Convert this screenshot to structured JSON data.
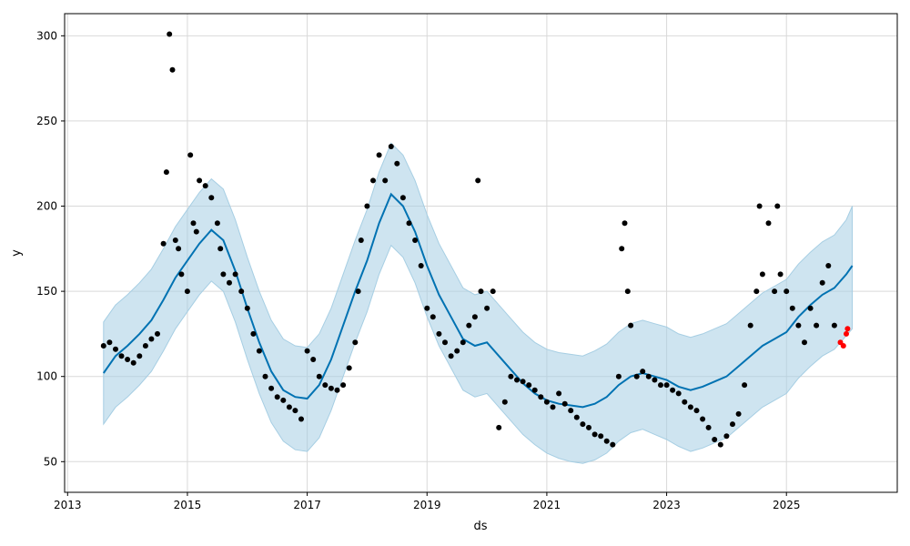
{
  "chart_data": {
    "type": "scatter",
    "xlabel": "ds",
    "ylabel": "y",
    "x_ticks": [
      "2013",
      "2015",
      "2017",
      "2019",
      "2021",
      "2023",
      "2025"
    ],
    "y_ticks": [
      50,
      100,
      150,
      200,
      250,
      300
    ],
    "xlim": [
      2012.95,
      2026.85
    ],
    "ylim": [
      32,
      313
    ],
    "grid": true,
    "colors": {
      "points": "#000000",
      "recent_points": "#ff0000",
      "forecast_line": "#0072b2",
      "interval_fill": "#a6cee3"
    },
    "series": [
      {
        "role": "forecast",
        "x": [
          2013.6,
          2013.8,
          2014.0,
          2014.2,
          2014.4,
          2014.6,
          2014.8,
          2015.0,
          2015.2,
          2015.4,
          2015.6,
          2015.8,
          2016.0,
          2016.2,
          2016.4,
          2016.6,
          2016.8,
          2017.0,
          2017.2,
          2017.4,
          2017.6,
          2017.8,
          2018.0,
          2018.2,
          2018.4,
          2018.6,
          2018.8,
          2019.0,
          2019.2,
          2019.4,
          2019.6,
          2019.8,
          2020.0,
          2020.2,
          2020.4,
          2020.6,
          2020.8,
          2021.0,
          2021.2,
          2021.4,
          2021.6,
          2021.8,
          2022.0,
          2022.2,
          2022.4,
          2022.6,
          2022.8,
          2023.0,
          2023.2,
          2023.4,
          2023.6,
          2023.8,
          2024.0,
          2024.2,
          2024.4,
          2024.6,
          2024.8,
          2025.0,
          2025.2,
          2025.4,
          2025.6,
          2025.8,
          2026.0,
          2026.1
        ],
        "y": [
          102,
          112,
          118,
          125,
          133,
          145,
          158,
          168,
          178,
          186,
          180,
          162,
          140,
          120,
          103,
          92,
          88,
          87,
          95,
          110,
          130,
          150,
          168,
          190,
          207,
          200,
          185,
          165,
          148,
          135,
          122,
          118,
          120,
          112,
          104,
          96,
          90,
          86,
          84,
          83,
          82,
          84,
          88,
          95,
          100,
          102,
          100,
          98,
          94,
          92,
          94,
          97,
          100,
          106,
          112,
          118,
          122,
          126,
          135,
          142,
          148,
          152,
          160,
          165
        ],
        "lower": [
          72,
          82,
          88,
          95,
          103,
          115,
          128,
          138,
          148,
          156,
          150,
          132,
          110,
          90,
          73,
          62,
          57,
          56,
          64,
          80,
          100,
          120,
          138,
          160,
          177,
          170,
          155,
          135,
          118,
          105,
          92,
          88,
          90,
          82,
          74,
          66,
          60,
          55,
          52,
          50,
          49,
          51,
          55,
          62,
          67,
          69,
          66,
          63,
          59,
          56,
          58,
          61,
          64,
          70,
          76,
          82,
          86,
          90,
          99,
          106,
          112,
          116,
          124,
          128
        ],
        "upper": [
          132,
          142,
          148,
          155,
          163,
          175,
          188,
          198,
          208,
          216,
          210,
          192,
          170,
          150,
          133,
          122,
          118,
          117,
          125,
          140,
          160,
          180,
          198,
          220,
          237,
          230,
          215,
          195,
          178,
          165,
          152,
          148,
          150,
          142,
          134,
          126,
          120,
          116,
          114,
          113,
          112,
          115,
          119,
          126,
          131,
          133,
          131,
          129,
          125,
          123,
          125,
          128,
          131,
          137,
          143,
          149,
          153,
          157,
          166,
          173,
          179,
          183,
          192,
          200
        ]
      },
      {
        "role": "observed",
        "x": [
          2013.6,
          2013.7,
          2013.8,
          2013.9,
          2014.0,
          2014.1,
          2014.2,
          2014.3,
          2014.4,
          2014.5,
          2014.6,
          2014.65,
          2014.7,
          2014.75,
          2014.8,
          2014.85,
          2014.9,
          2015.0,
          2015.05,
          2015.1,
          2015.15,
          2015.2,
          2015.3,
          2015.4,
          2015.5,
          2015.55,
          2015.6,
          2015.7,
          2015.8,
          2015.9,
          2016.0,
          2016.1,
          2016.2,
          2016.3,
          2016.4,
          2016.5,
          2016.6,
          2016.7,
          2016.8,
          2016.9,
          2017.0,
          2017.1,
          2017.2,
          2017.3,
          2017.4,
          2017.5,
          2017.6,
          2017.7,
          2017.8,
          2017.85,
          2017.9,
          2018.0,
          2018.1,
          2018.2,
          2018.3,
          2018.4,
          2018.5,
          2018.6,
          2018.7,
          2018.8,
          2018.9,
          2019.0,
          2019.1,
          2019.2,
          2019.3,
          2019.4,
          2019.5,
          2019.6,
          2019.7,
          2019.8,
          2019.85,
          2019.9,
          2020.0,
          2020.1,
          2020.2,
          2020.3,
          2020.4,
          2020.5,
          2020.6,
          2020.7,
          2020.8,
          2020.9,
          2021.0,
          2021.1,
          2021.2,
          2021.3,
          2021.4,
          2021.5,
          2021.6,
          2021.7,
          2021.8,
          2021.9,
          2022.0,
          2022.1,
          2022.2,
          2022.25,
          2022.3,
          2022.35,
          2022.4,
          2022.5,
          2022.6,
          2022.7,
          2022.8,
          2022.9,
          2023.0,
          2023.1,
          2023.2,
          2023.3,
          2023.4,
          2023.5,
          2023.6,
          2023.7,
          2023.8,
          2023.9,
          2024.0,
          2024.1,
          2024.2,
          2024.3,
          2024.4,
          2024.5,
          2024.55,
          2024.6,
          2024.7,
          2024.8,
          2024.85,
          2024.9,
          2025.0,
          2025.1,
          2025.2,
          2025.3,
          2025.4,
          2025.5,
          2025.6,
          2025.7,
          2025.8
        ],
        "y": [
          118,
          120,
          116,
          112,
          110,
          108,
          112,
          118,
          122,
          125,
          178,
          220,
          301,
          280,
          180,
          175,
          160,
          150,
          230,
          190,
          185,
          215,
          212,
          205,
          190,
          175,
          160,
          155,
          160,
          150,
          140,
          125,
          115,
          100,
          93,
          88,
          86,
          82,
          80,
          75,
          115,
          110,
          100,
          95,
          93,
          92,
          95,
          105,
          120,
          150,
          180,
          200,
          215,
          230,
          215,
          235,
          225,
          205,
          190,
          180,
          165,
          140,
          135,
          125,
          120,
          112,
          115,
          120,
          130,
          135,
          215,
          150,
          140,
          150,
          70,
          85,
          100,
          98,
          97,
          95,
          92,
          88,
          85,
          82,
          90,
          84,
          80,
          76,
          72,
          70,
          66,
          65,
          62,
          60,
          100,
          175,
          190,
          150,
          130,
          100,
          103,
          100,
          98,
          95,
          95,
          92,
          90,
          85,
          82,
          80,
          75,
          70,
          63,
          60,
          65,
          72,
          78,
          95,
          130,
          150,
          200,
          160,
          190,
          150,
          200,
          160,
          150,
          140,
          130,
          120,
          140,
          130,
          155,
          165,
          130
        ]
      },
      {
        "role": "recent",
        "x": [
          2025.9,
          2025.95,
          2026.0,
          2026.02
        ],
        "y": [
          120,
          118,
          125,
          128
        ]
      }
    ]
  }
}
